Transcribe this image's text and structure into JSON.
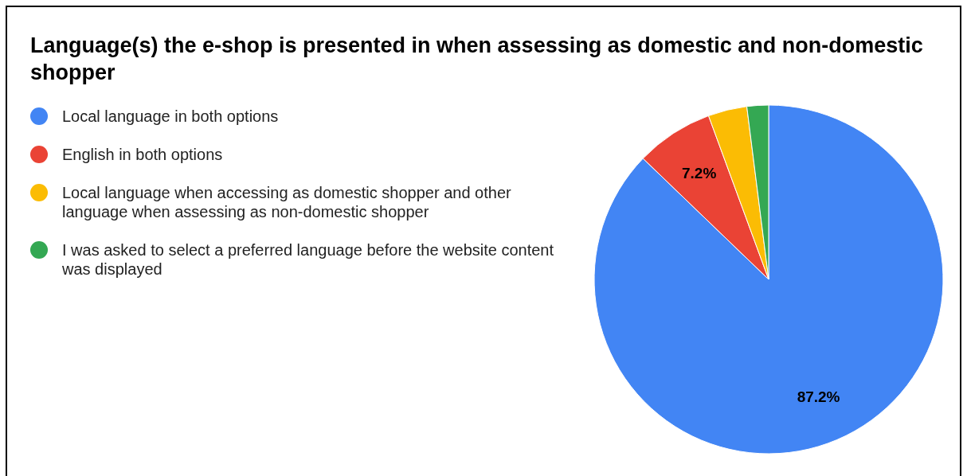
{
  "chart_data": {
    "type": "pie",
    "title": "Language(s) the e-shop is presented in when assessing as domestic and non-domestic shopper",
    "categories": [
      "Local language in both options",
      "English in both options",
      "Local language when accessing as domestic shopper and other language when assessing as non-domestic shopper",
      "I was asked to select a preferred language before the website content was displayed"
    ],
    "values": [
      87.2,
      7.2,
      3.6,
      2.0
    ],
    "colors": [
      "#4285f4",
      "#ea4335",
      "#fbbc04",
      "#34a853"
    ],
    "value_labels": [
      "87.2%",
      "7.2%",
      null,
      null
    ],
    "legend": "left"
  }
}
